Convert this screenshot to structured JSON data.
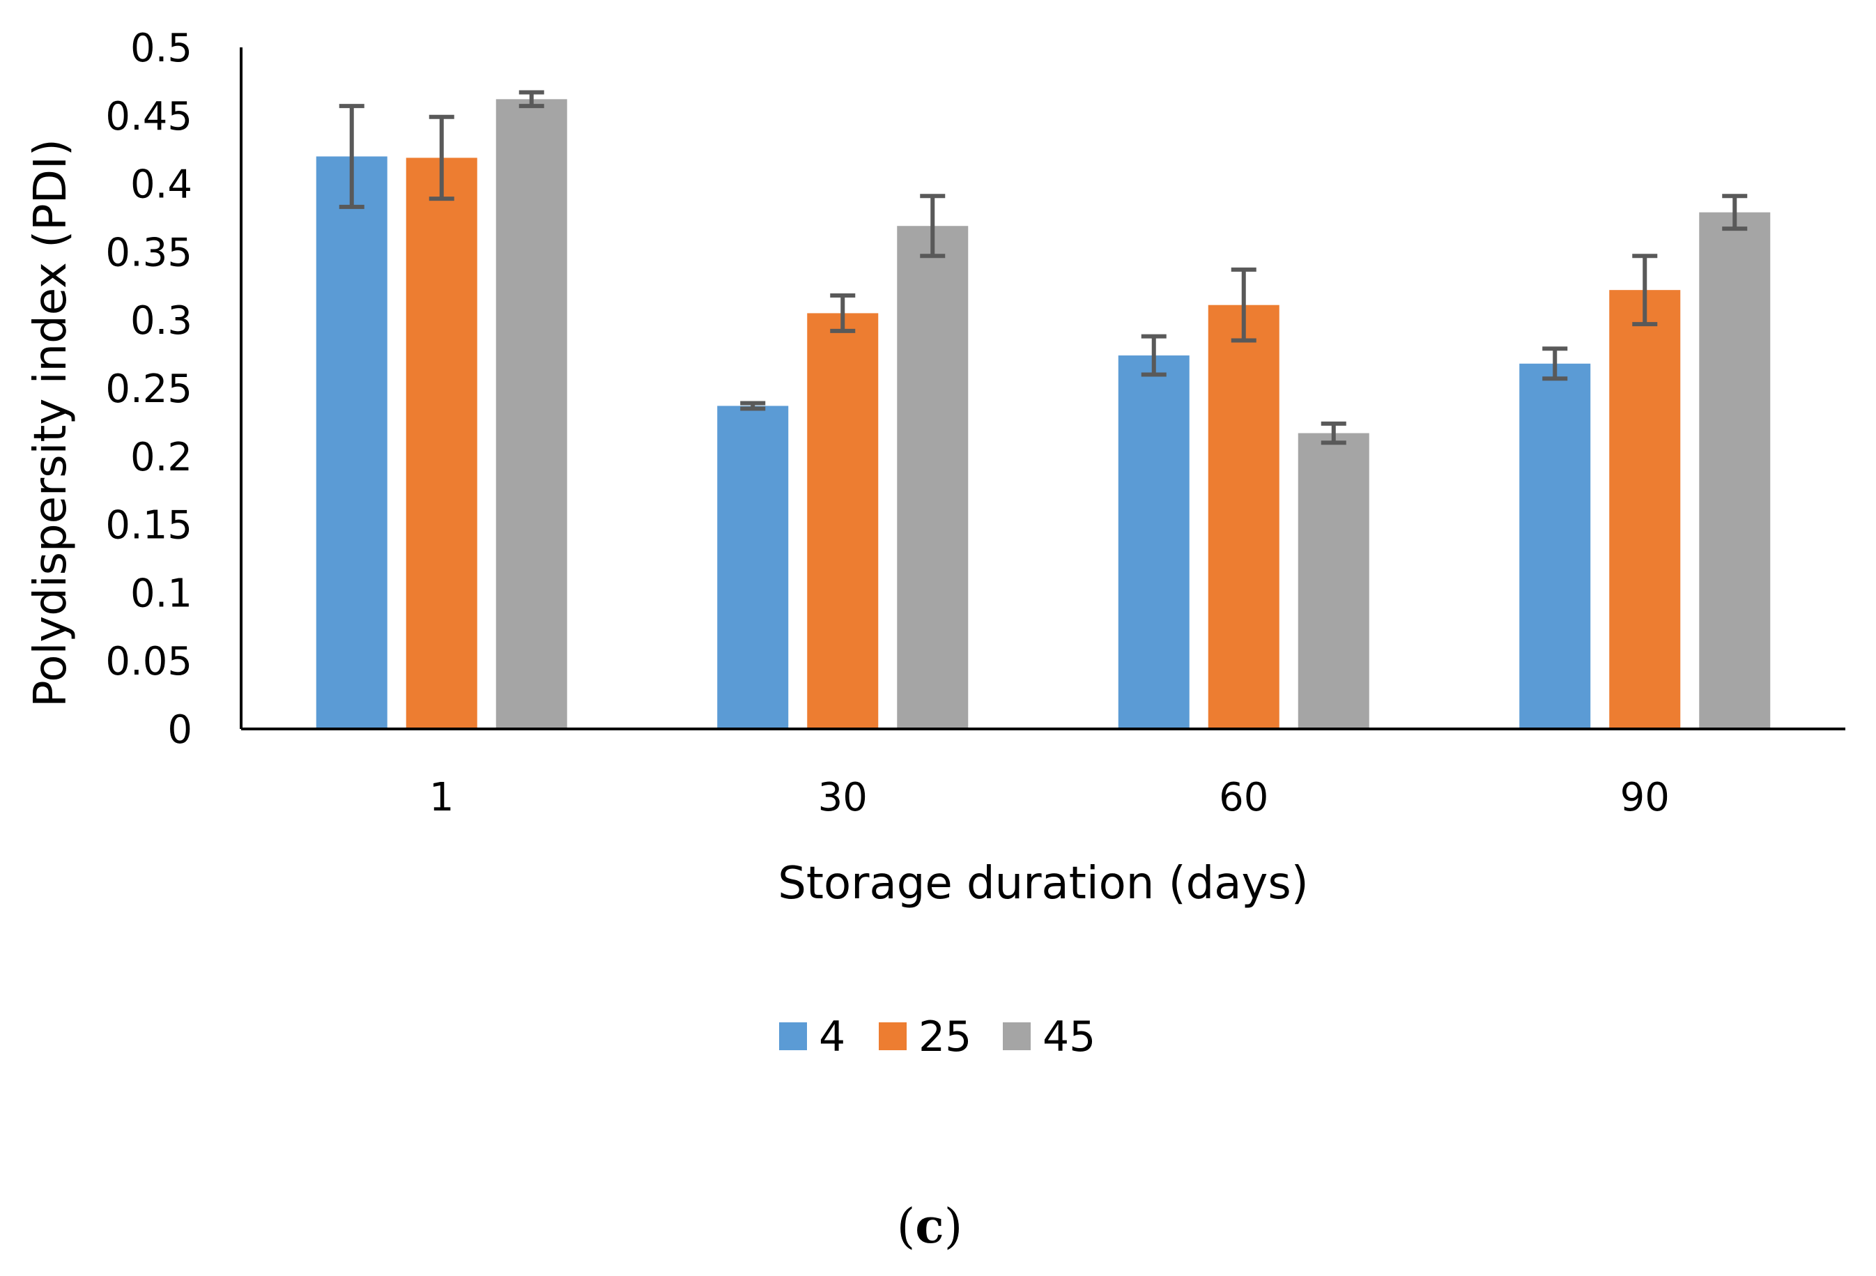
{
  "chart_data": {
    "type": "bar",
    "title": "",
    "xlabel": "Storage duration (days)",
    "ylabel": "Polydispersity index (PDI)",
    "ylim": [
      0,
      0.5
    ],
    "yticks": [
      "0",
      "0.05",
      "0.1",
      "0.15",
      "0.2",
      "0.25",
      "0.3",
      "0.35",
      "0.4",
      "0.45",
      "0.5"
    ],
    "ytick_values": [
      0,
      0.05,
      0.1,
      0.15,
      0.2,
      0.25,
      0.3,
      0.35,
      0.4,
      0.45,
      0.5
    ],
    "categories": [
      "1",
      "30",
      "60",
      "90"
    ],
    "grid": false,
    "legend_position": "bottom-center",
    "series": [
      {
        "name": "4",
        "color": "#5B9BD5",
        "values": [
          0.42,
          0.237,
          0.274,
          0.268
        ],
        "errors": [
          0.037,
          0.002,
          0.014,
          0.011
        ]
      },
      {
        "name": "25",
        "color": "#ED7D31",
        "values": [
          0.419,
          0.305,
          0.311,
          0.322
        ],
        "errors": [
          0.03,
          0.013,
          0.026,
          0.025
        ]
      },
      {
        "name": "45",
        "color": "#A5A5A5",
        "values": [
          0.462,
          0.369,
          0.217,
          0.379
        ],
        "errors": [
          0.005,
          0.022,
          0.007,
          0.012
        ]
      }
    ],
    "error_bar_color": "#595959",
    "axis_color": "#000000"
  },
  "panel_label": {
    "open": "(",
    "letter": "c",
    "close": ")"
  }
}
